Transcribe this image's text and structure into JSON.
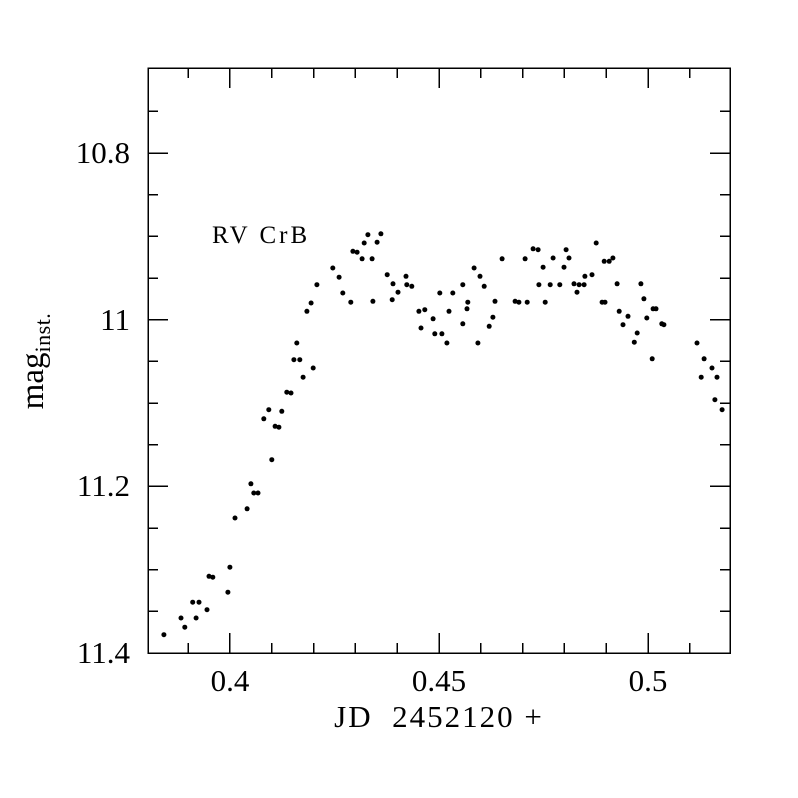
{
  "figure": {
    "background_color": "#ffffff",
    "ink_color": "#000000"
  },
  "chart_data": {
    "type": "scatter",
    "title": "",
    "annotation": {
      "text": "RV CrB",
      "x": 0.3957,
      "y": 10.899
    },
    "xlabel": "JD  2452120 +",
    "ylabel_main": "mag",
    "ylabel_sub": "inst.",
    "xlim": [
      0.3804,
      0.5196
    ],
    "ylim": {
      "top_value": 10.698,
      "bottom_value": 11.4
    },
    "y_axis_inverted": true,
    "grid": false,
    "legend": null,
    "x_major_ticks": [
      {
        "value": 0.4,
        "label": "0.4"
      },
      {
        "value": 0.45,
        "label": "0.45"
      },
      {
        "value": 0.5,
        "label": "0.5"
      }
    ],
    "x_minor_tick_step": 0.01,
    "y_major_ticks": [
      {
        "value": 10.8,
        "label": "10.8"
      },
      {
        "value": 11.0,
        "label": "11"
      },
      {
        "value": 11.2,
        "label": "11.2"
      },
      {
        "value": 11.4,
        "label": "11.4"
      }
    ],
    "y_minor_tick_step": 0.05,
    "marker": {
      "shape": "filled-circle",
      "color": "#000000",
      "radius_px": 2.5
    },
    "points": [
      [
        0.3842,
        11.378
      ],
      [
        0.3883,
        11.358
      ],
      [
        0.3892,
        11.369
      ],
      [
        0.3911,
        11.339
      ],
      [
        0.3926,
        11.339
      ],
      [
        0.3919,
        11.358
      ],
      [
        0.3945,
        11.348
      ],
      [
        0.395,
        11.308
      ],
      [
        0.3959,
        11.309
      ],
      [
        0.3995,
        11.327
      ],
      [
        0.4,
        11.297
      ],
      [
        0.4012,
        11.238
      ],
      [
        0.4041,
        11.227
      ],
      [
        0.405,
        11.197
      ],
      [
        0.4057,
        11.208
      ],
      [
        0.4067,
        11.208
      ],
      [
        0.41,
        11.168
      ],
      [
        0.4081,
        11.119
      ],
      [
        0.4093,
        11.108
      ],
      [
        0.4108,
        11.128
      ],
      [
        0.4117,
        11.129
      ],
      [
        0.4124,
        11.11
      ],
      [
        0.4136,
        11.087
      ],
      [
        0.4146,
        11.088
      ],
      [
        0.4153,
        11.048
      ],
      [
        0.4167,
        11.048
      ],
      [
        0.416,
        11.028
      ],
      [
        0.4175,
        11.069
      ],
      [
        0.4199,
        11.058
      ],
      [
        0.4184,
        10.99
      ],
      [
        0.4194,
        10.98
      ],
      [
        0.4208,
        10.958
      ],
      [
        0.4246,
        10.938
      ],
      [
        0.4261,
        10.949
      ],
      [
        0.427,
        10.968
      ],
      [
        0.4289,
        10.979
      ],
      [
        0.4294,
        10.918
      ],
      [
        0.4304,
        10.919
      ],
      [
        0.4316,
        10.927
      ],
      [
        0.4321,
        10.908
      ],
      [
        0.433,
        10.898
      ],
      [
        0.434,
        10.927
      ],
      [
        0.4342,
        10.978
      ],
      [
        0.4352,
        10.907
      ],
      [
        0.4361,
        10.897
      ],
      [
        0.4376,
        10.946
      ],
      [
        0.4388,
        10.976
      ],
      [
        0.439,
        10.957
      ],
      [
        0.4402,
        10.967
      ],
      [
        0.4421,
        10.948
      ],
      [
        0.4423,
        10.958
      ],
      [
        0.4435,
        10.96
      ],
      [
        0.4452,
        10.99
      ],
      [
        0.4466,
        10.988
      ],
      [
        0.4457,
        11.01
      ],
      [
        0.4486,
        10.999
      ],
      [
        0.449,
        11.017
      ],
      [
        0.4507,
        11.017
      ],
      [
        0.4519,
        11.028
      ],
      [
        0.4502,
        10.968
      ],
      [
        0.4533,
        10.968
      ],
      [
        0.4524,
        10.99
      ],
      [
        0.4557,
        10.958
      ],
      [
        0.4569,
        10.979
      ],
      [
        0.4567,
        10.987
      ],
      [
        0.4584,
        10.938
      ],
      [
        0.4598,
        10.948
      ],
      [
        0.4608,
        10.96
      ],
      [
        0.4629,
        10.997
      ],
      [
        0.462,
        11.008
      ],
      [
        0.4557,
        11.005
      ],
      [
        0.4593,
        11.028
      ],
      [
        0.4634,
        10.978
      ],
      [
        0.4651,
        10.927
      ],
      [
        0.4682,
        10.978
      ],
      [
        0.4691,
        10.979
      ],
      [
        0.4706,
        10.927
      ],
      [
        0.4725,
        10.915
      ],
      [
        0.4737,
        10.916
      ],
      [
        0.4749,
        10.937
      ],
      [
        0.4773,
        10.926
      ],
      [
        0.4804,
        10.916
      ],
      [
        0.4811,
        10.926
      ],
      [
        0.4799,
        10.937
      ],
      [
        0.4876,
        10.908
      ],
      [
        0.4895,
        10.93
      ],
      [
        0.4907,
        10.93
      ],
      [
        0.4916,
        10.926
      ],
      [
        0.4849,
        10.948
      ],
      [
        0.4866,
        10.946
      ],
      [
        0.4739,
        10.958
      ],
      [
        0.4766,
        10.958
      ],
      [
        0.4789,
        10.958
      ],
      [
        0.4823,
        10.957
      ],
      [
        0.4835,
        10.958
      ],
      [
        0.4847,
        10.958
      ],
      [
        0.483,
        10.967
      ],
      [
        0.4926,
        10.957
      ],
      [
        0.4983,
        10.957
      ],
      [
        0.4711,
        10.979
      ],
      [
        0.4754,
        10.979
      ],
      [
        0.489,
        10.979
      ],
      [
        0.4897,
        10.979
      ],
      [
        0.4931,
        10.99
      ],
      [
        0.4952,
        10.996
      ],
      [
        0.494,
        11.006
      ],
      [
        0.4974,
        11.016
      ],
      [
        0.4967,
        11.027
      ],
      [
        0.499,
        10.975
      ],
      [
        0.5012,
        10.987
      ],
      [
        0.5019,
        10.987
      ],
      [
        0.4997,
        10.998
      ],
      [
        0.5033,
        11.005
      ],
      [
        0.5038,
        11.006
      ],
      [
        0.501,
        11.047
      ],
      [
        0.5117,
        11.028
      ],
      [
        0.5134,
        11.047
      ],
      [
        0.5153,
        11.058
      ],
      [
        0.5127,
        11.069
      ],
      [
        0.5165,
        11.069
      ],
      [
        0.516,
        11.096
      ],
      [
        0.5177,
        11.108
      ]
    ]
  }
}
